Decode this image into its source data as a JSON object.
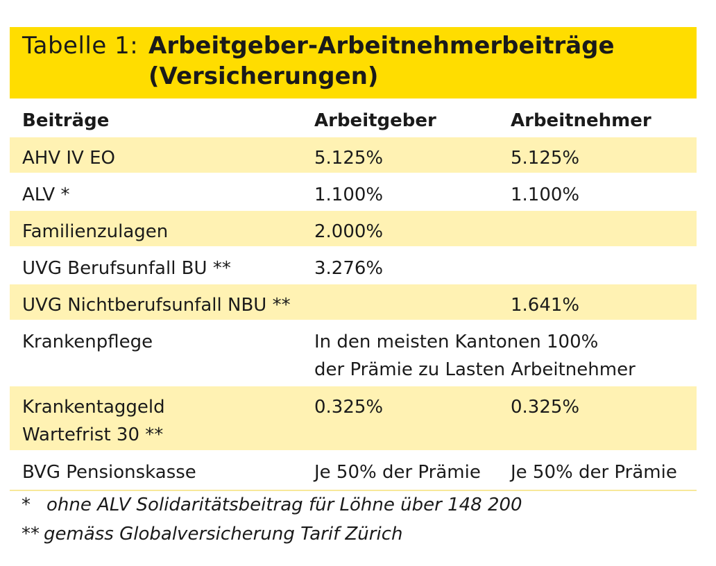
{
  "title": {
    "label": "Tabelle 1:",
    "line1": "Arbeitgeber-Arbeitnehmerbeiträge",
    "line2": "(Versicherungen)"
  },
  "header": {
    "col1": "Beiträge",
    "col2": "Arbeitgeber",
    "col3": "Arbeitnehmer"
  },
  "rows": [
    {
      "c1": [
        "AHV IV EO"
      ],
      "c2": [
        "5.125%"
      ],
      "c3": [
        "5.125%"
      ],
      "shaded": true
    },
    {
      "c1": [
        "ALV *"
      ],
      "c2": [
        "1.100%"
      ],
      "c3": [
        "1.100%"
      ],
      "shaded": false
    },
    {
      "c1": [
        "Familienzulagen"
      ],
      "c2": [
        "2.000%"
      ],
      "c3": [
        ""
      ],
      "shaded": true
    },
    {
      "c1": [
        "UVG Berufsunfall BU **"
      ],
      "c2": [
        "3.276%"
      ],
      "c3": [
        ""
      ],
      "shaded": false
    },
    {
      "c1": [
        "UVG Nichtberufsunfall NBU **"
      ],
      "c2": [
        ""
      ],
      "c3": [
        "1.641%"
      ],
      "shaded": true
    },
    {
      "c1": [
        "Krankenpflege"
      ],
      "c2": [
        "In den meisten Kantonen 100%",
        "der Prämie zu Lasten Arbeitnehmer"
      ],
      "c3": [
        ""
      ],
      "shaded": false
    },
    {
      "c1": [
        "Krankentaggeld",
        "Wartefrist 30 **"
      ],
      "c2": [
        "0.325%"
      ],
      "c3": [
        "0.325%"
      ],
      "shaded": true
    },
    {
      "c1": [
        "BVG Pensionskasse"
      ],
      "c2": [
        "Je 50% der Prämie"
      ],
      "c3": [
        "Je 50% der Prämie"
      ],
      "shaded": false
    }
  ],
  "footnotes": [
    {
      "marker": "*",
      "text": "ohne ALV Solidaritätsbeitrag für Löhne über 148 200"
    },
    {
      "marker": "**",
      "text": "gemäss Globalversicherung Tarif Zürich"
    }
  ],
  "colors": {
    "title_bg": "#ffdd00",
    "row_shade": "#fff2b3",
    "text": "#1a1a1a"
  }
}
